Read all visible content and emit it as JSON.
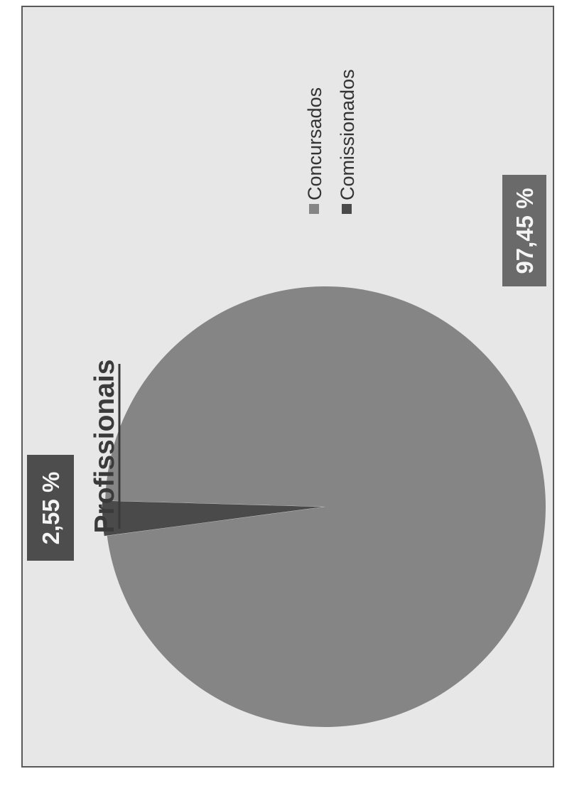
{
  "chart_data": {
    "type": "pie",
    "title": "Profissionais",
    "slices": [
      {
        "name": "Concursados",
        "value": 97.45,
        "label": "97,45 %",
        "color": "#858585"
      },
      {
        "name": "Comissionados",
        "value": 2.55,
        "label": "2,55 %",
        "color": "#4a4a4a"
      }
    ],
    "legend": {
      "placement": "top-right",
      "items": [
        "Concursados",
        "Comissionados"
      ]
    }
  }
}
